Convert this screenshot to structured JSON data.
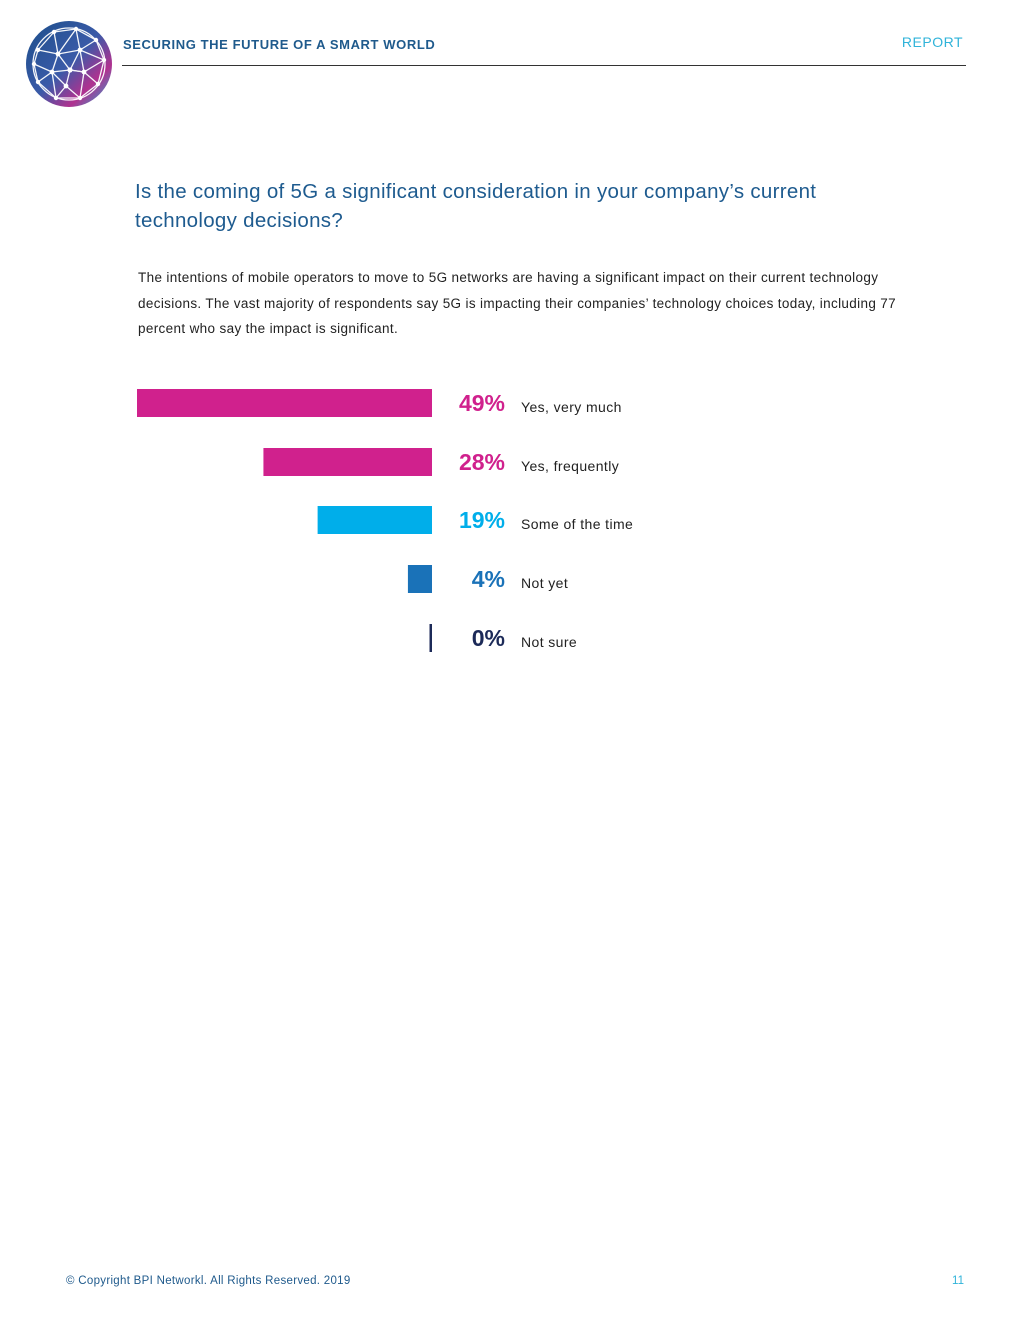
{
  "header": {
    "title": "SECURING THE FUTURE OF A SMART WORLD",
    "section": "REPORT"
  },
  "main": {
    "question": "Is the coming of 5G a significant consideration in your company’s current technology decisions?",
    "body": "The intentions of mobile operators to move to 5G networks are having a significant impact on their current technology decisions. The vast majority of respondents say 5G is impacting their companies’ technology choices today, including 77 percent who say the impact is significant."
  },
  "chart_data": {
    "type": "bar",
    "orientation": "horizontal",
    "categories": [
      "Yes, very much",
      "Yes, frequently",
      "Some of the time",
      "Not yet",
      "Not sure"
    ],
    "values": [
      49,
      28,
      19,
      4,
      0
    ],
    "value_labels": [
      "49%",
      "28%",
      "19%",
      "4%",
      "0%"
    ],
    "colors": [
      "#d0218d",
      "#d0218d",
      "#00aeea",
      "#1a72b8",
      "#1c2a58"
    ],
    "unit": "%",
    "xlim": [
      0,
      49
    ],
    "grid": false,
    "legend": "none",
    "bar_direction": "right-aligned"
  },
  "footer": {
    "copyright": "© Copyright BPI Networkl. All Rights Reserved. 2019",
    "page_number": "11"
  },
  "icons": {
    "logo": "network-globe-logo"
  }
}
